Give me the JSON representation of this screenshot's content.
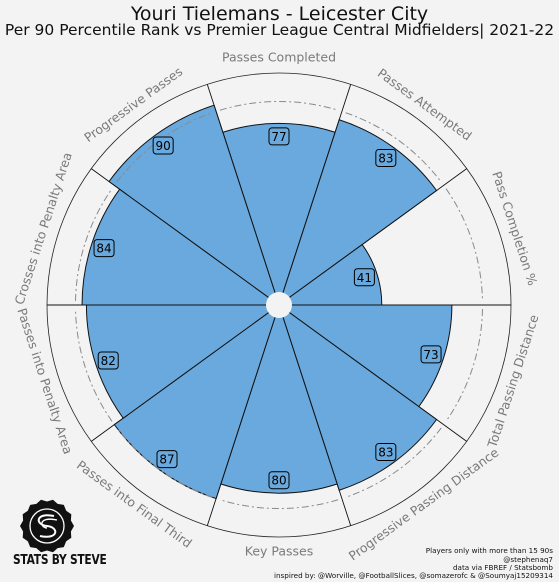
{
  "title": "Youri Tielemans - Leicester City",
  "subtitle": "Per 90 Percentile Rank vs Premier League Central Midfielders| 2021-22",
  "chart_data": {
    "type": "polar-bar",
    "title": "Youri Tielemans - Leicester City",
    "subtitle": "Per 90 Percentile Rank vs Premier League Central Midfielders| 2021-22",
    "rlim": [
      0,
      100
    ],
    "categories": [
      "Passes Completed",
      "Passes Attempted",
      "Pass Completion %",
      "Total Passing Distance",
      "Progressive Passing Distance",
      "Key Passes",
      "Passes into Final Third",
      "Passes into Penalty Area",
      "Crosses into Penalty Area",
      "Progressive Passes"
    ],
    "values": [
      77,
      83,
      41,
      73,
      83,
      80,
      87,
      82,
      84,
      90
    ],
    "bar_color": "#6aa9dd",
    "background_color": "#f3f3f3",
    "label_color": "#7a7a7a"
  },
  "footer": {
    "line1": "Players only with more than 15 90s",
    "line2": "@stephenaq7",
    "line3": "data via FBREF / Statsbomb",
    "line4": "inspired by: @Worville, @FootballSlices, @somazerofc & @Soumyaj15209314"
  },
  "logo": {
    "text": "STATS BY STEVE",
    "icon": "logo-badge-icon"
  }
}
